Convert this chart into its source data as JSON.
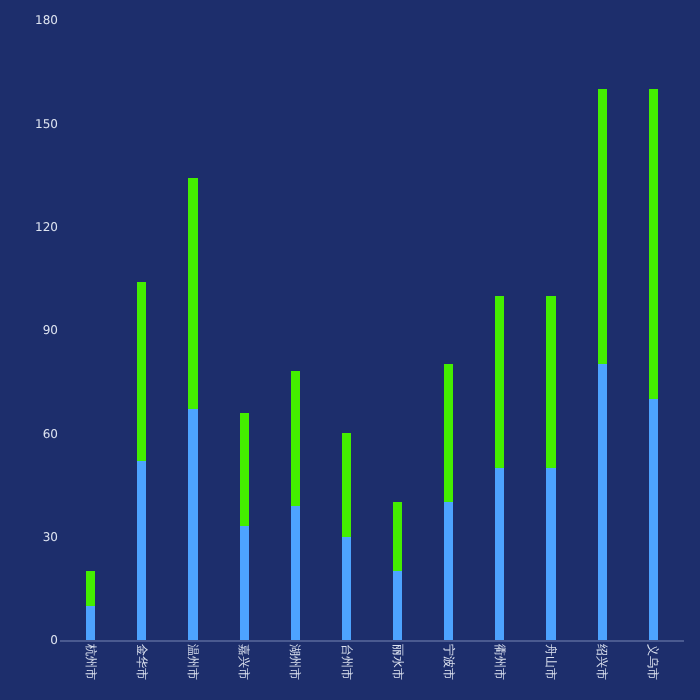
{
  "chart_data": {
    "type": "bar",
    "stacked": true,
    "categories": [
      "杭州市",
      "金华市",
      "温州市",
      "嘉兴市",
      "湖州市",
      "台州市",
      "丽水市",
      "宁波市",
      "衢州市",
      "舟山市",
      "绍兴市",
      "义乌市"
    ],
    "series": [
      {
        "color": "#4da3ff",
        "values": [
          10,
          52,
          67,
          33,
          39,
          30,
          20,
          40,
          50,
          50,
          80,
          70
        ]
      },
      {
        "color": "#44ee00",
        "values": [
          10,
          52,
          67,
          33,
          39,
          30,
          20,
          40,
          50,
          50,
          80,
          90
        ]
      }
    ],
    "ylim": [
      0,
      180
    ],
    "yticks": [
      0,
      30,
      60,
      90,
      120,
      150,
      180
    ],
    "grid": false
  }
}
